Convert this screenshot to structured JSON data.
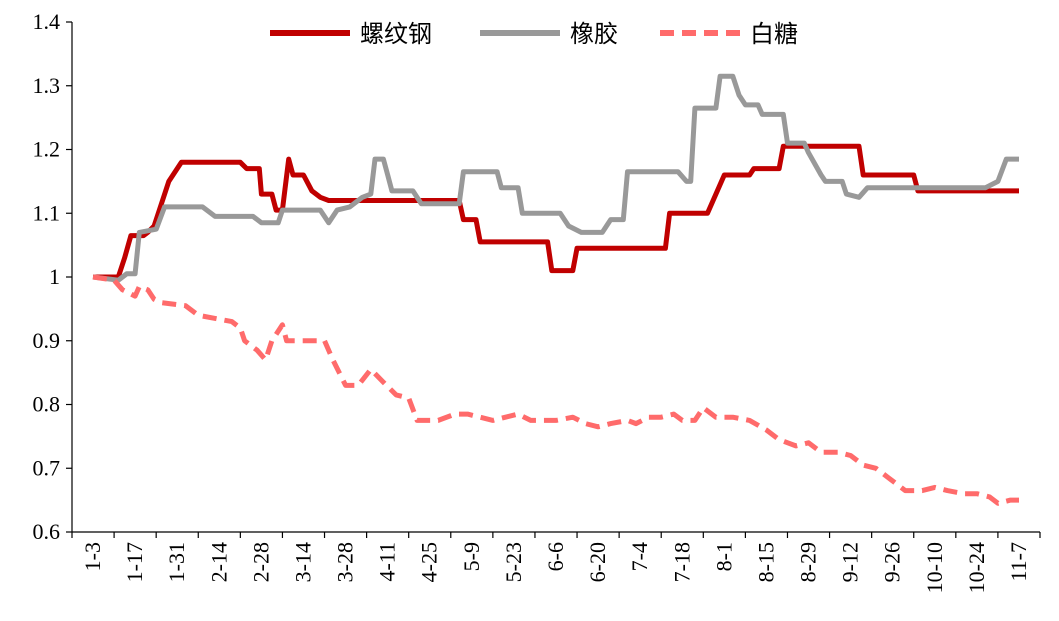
{
  "chart_data": {
    "type": "line",
    "title": "",
    "xlabel": "",
    "ylabel": "",
    "ylim": [
      0.6,
      1.4
    ],
    "yticks": [
      "1.4",
      "1.3",
      "1.2",
      "1.1",
      "1",
      "0.9",
      "0.8",
      "0.7",
      "0.6"
    ],
    "xticks": [
      "1-3",
      "1-17",
      "1-31",
      "2-14",
      "2-28",
      "3-14",
      "3-28",
      "4-11",
      "4-25",
      "5-9",
      "5-23",
      "6-6",
      "6-20",
      "7-4",
      "7-18",
      "8-1",
      "8-15",
      "8-29",
      "9-12",
      "9-26",
      "10-10",
      "10-24",
      "11-7"
    ],
    "grid": false,
    "legend_position": "top",
    "series": [
      {
        "name": "螺纹钢",
        "color": "#c00000",
        "dash": "solid",
        "points": [
          [
            0,
            1.0
          ],
          [
            0.6,
            1.0
          ],
          [
            0.75,
            1.03
          ],
          [
            0.9,
            1.065
          ],
          [
            1.2,
            1.065
          ],
          [
            1.3,
            1.07
          ],
          [
            1.45,
            1.08
          ],
          [
            1.8,
            1.15
          ],
          [
            2.1,
            1.18
          ],
          [
            3.5,
            1.18
          ],
          [
            3.65,
            1.17
          ],
          [
            3.95,
            1.17
          ],
          [
            4.0,
            1.13
          ],
          [
            4.25,
            1.13
          ],
          [
            4.35,
            1.105
          ],
          [
            4.5,
            1.105
          ],
          [
            4.65,
            1.185
          ],
          [
            4.75,
            1.16
          ],
          [
            5.0,
            1.16
          ],
          [
            5.2,
            1.135
          ],
          [
            5.4,
            1.125
          ],
          [
            5.6,
            1.12
          ],
          [
            8.7,
            1.12
          ],
          [
            8.8,
            1.09
          ],
          [
            9.1,
            1.09
          ],
          [
            9.2,
            1.055
          ],
          [
            10.8,
            1.055
          ],
          [
            10.9,
            1.01
          ],
          [
            11.4,
            1.01
          ],
          [
            11.5,
            1.045
          ],
          [
            13.6,
            1.045
          ],
          [
            13.7,
            1.1
          ],
          [
            14.6,
            1.1
          ],
          [
            15.0,
            1.16
          ],
          [
            15.6,
            1.16
          ],
          [
            15.7,
            1.17
          ],
          [
            16.3,
            1.17
          ],
          [
            16.4,
            1.205
          ],
          [
            18.2,
            1.205
          ],
          [
            18.3,
            1.16
          ],
          [
            19.5,
            1.16
          ],
          [
            19.6,
            1.135
          ],
          [
            22.0,
            1.135
          ]
        ]
      },
      {
        "name": "橡胶",
        "color": "#999999",
        "dash": "solid",
        "points": [
          [
            0,
            1.0
          ],
          [
            0.6,
            0.995
          ],
          [
            0.8,
            1.005
          ],
          [
            1.0,
            1.005
          ],
          [
            1.1,
            1.07
          ],
          [
            1.5,
            1.075
          ],
          [
            1.7,
            1.11
          ],
          [
            2.6,
            1.11
          ],
          [
            2.9,
            1.095
          ],
          [
            3.8,
            1.095
          ],
          [
            4.0,
            1.085
          ],
          [
            4.4,
            1.085
          ],
          [
            4.5,
            1.105
          ],
          [
            5.4,
            1.105
          ],
          [
            5.6,
            1.085
          ],
          [
            5.8,
            1.105
          ],
          [
            6.1,
            1.11
          ],
          [
            6.4,
            1.125
          ],
          [
            6.6,
            1.13
          ],
          [
            6.7,
            1.185
          ],
          [
            6.9,
            1.185
          ],
          [
            7.0,
            1.16
          ],
          [
            7.1,
            1.135
          ],
          [
            7.6,
            1.135
          ],
          [
            7.8,
            1.115
          ],
          [
            8.7,
            1.115
          ],
          [
            8.8,
            1.165
          ],
          [
            9.6,
            1.165
          ],
          [
            9.7,
            1.14
          ],
          [
            10.1,
            1.14
          ],
          [
            10.2,
            1.1
          ],
          [
            11.1,
            1.1
          ],
          [
            11.3,
            1.08
          ],
          [
            11.6,
            1.07
          ],
          [
            12.1,
            1.07
          ],
          [
            12.3,
            1.09
          ],
          [
            12.6,
            1.09
          ],
          [
            12.7,
            1.165
          ],
          [
            13.9,
            1.165
          ],
          [
            14.1,
            1.15
          ],
          [
            14.2,
            1.15
          ],
          [
            14.3,
            1.265
          ],
          [
            14.8,
            1.265
          ],
          [
            14.9,
            1.315
          ],
          [
            15.2,
            1.315
          ],
          [
            15.35,
            1.285
          ],
          [
            15.5,
            1.27
          ],
          [
            15.8,
            1.27
          ],
          [
            15.9,
            1.255
          ],
          [
            16.4,
            1.255
          ],
          [
            16.5,
            1.21
          ],
          [
            16.9,
            1.21
          ],
          [
            17.0,
            1.195
          ],
          [
            17.3,
            1.16
          ],
          [
            17.4,
            1.15
          ],
          [
            17.8,
            1.15
          ],
          [
            17.9,
            1.13
          ],
          [
            18.2,
            1.125
          ],
          [
            18.4,
            1.14
          ],
          [
            20.2,
            1.14
          ],
          [
            21.2,
            1.14
          ],
          [
            21.5,
            1.15
          ],
          [
            21.7,
            1.185
          ],
          [
            22.0,
            1.185
          ]
        ]
      },
      {
        "name": "白糖",
        "color": "#ff6b6b",
        "dash": "dashed",
        "points": [
          [
            0,
            1.0
          ],
          [
            0.3,
            0.997
          ],
          [
            0.5,
            0.995
          ],
          [
            0.7,
            0.98
          ],
          [
            1.0,
            0.97
          ],
          [
            1.1,
            0.985
          ],
          [
            1.3,
            0.98
          ],
          [
            1.45,
            0.965
          ],
          [
            1.6,
            0.96
          ],
          [
            2.2,
            0.955
          ],
          [
            2.5,
            0.94
          ],
          [
            2.9,
            0.935
          ],
          [
            3.3,
            0.93
          ],
          [
            3.5,
            0.92
          ],
          [
            3.6,
            0.9
          ],
          [
            3.9,
            0.885
          ],
          [
            4.1,
            0.87
          ],
          [
            4.25,
            0.9
          ],
          [
            4.35,
            0.91
          ],
          [
            4.5,
            0.925
          ],
          [
            4.6,
            0.9
          ],
          [
            5.5,
            0.9
          ],
          [
            5.7,
            0.87
          ],
          [
            6.0,
            0.83
          ],
          [
            6.3,
            0.83
          ],
          [
            6.6,
            0.855
          ],
          [
            6.9,
            0.835
          ],
          [
            7.2,
            0.815
          ],
          [
            7.5,
            0.81
          ],
          [
            7.7,
            0.775
          ],
          [
            8.2,
            0.775
          ],
          [
            8.6,
            0.785
          ],
          [
            8.9,
            0.785
          ],
          [
            9.2,
            0.78
          ],
          [
            9.5,
            0.775
          ],
          [
            9.8,
            0.78
          ],
          [
            10.1,
            0.785
          ],
          [
            10.4,
            0.775
          ],
          [
            10.7,
            0.775
          ],
          [
            11.0,
            0.775
          ],
          [
            11.4,
            0.78
          ],
          [
            11.7,
            0.77
          ],
          [
            12.0,
            0.765
          ],
          [
            12.3,
            0.77
          ],
          [
            12.7,
            0.775
          ],
          [
            12.9,
            0.77
          ],
          [
            13.2,
            0.78
          ],
          [
            13.5,
            0.78
          ],
          [
            13.8,
            0.785
          ],
          [
            14.0,
            0.775
          ],
          [
            14.3,
            0.775
          ],
          [
            14.5,
            0.795
          ],
          [
            14.8,
            0.78
          ],
          [
            15.2,
            0.78
          ],
          [
            15.6,
            0.775
          ],
          [
            16.0,
            0.76
          ],
          [
            16.3,
            0.745
          ],
          [
            16.7,
            0.735
          ],
          [
            17.0,
            0.74
          ],
          [
            17.3,
            0.725
          ],
          [
            17.7,
            0.725
          ],
          [
            18.0,
            0.72
          ],
          [
            18.3,
            0.705
          ],
          [
            18.6,
            0.7
          ],
          [
            19.0,
            0.68
          ],
          [
            19.3,
            0.665
          ],
          [
            19.7,
            0.665
          ],
          [
            20.0,
            0.67
          ],
          [
            20.3,
            0.665
          ],
          [
            20.7,
            0.66
          ],
          [
            21.0,
            0.66
          ],
          [
            21.3,
            0.655
          ],
          [
            21.5,
            0.645
          ],
          [
            21.8,
            0.65
          ],
          [
            22.0,
            0.65
          ]
        ]
      }
    ]
  }
}
